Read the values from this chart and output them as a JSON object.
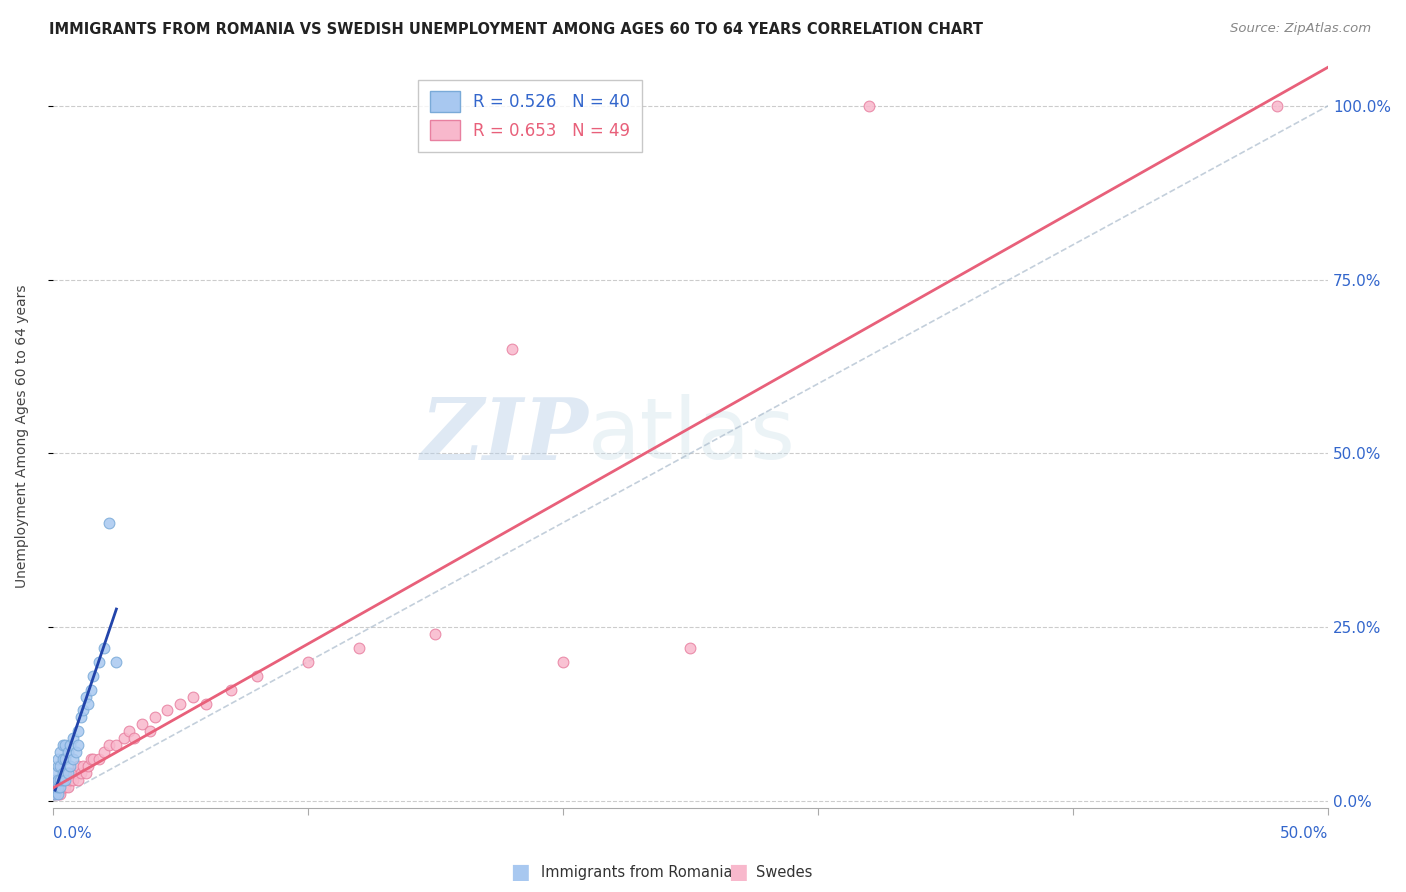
{
  "title": "IMMIGRANTS FROM ROMANIA VS SWEDISH UNEMPLOYMENT AMONG AGES 60 TO 64 YEARS CORRELATION CHART",
  "source": "Source: ZipAtlas.com",
  "ylabel": "Unemployment Among Ages 60 to 64 years",
  "xlim": [
    0.0,
    0.5
  ],
  "ylim": [
    -0.01,
    1.06
  ],
  "yticks": [
    0.0,
    0.25,
    0.5,
    0.75,
    1.0
  ],
  "ytick_labels": [
    "0.0%",
    "25.0%",
    "50.0%",
    "75.0%",
    "100.0%"
  ],
  "background_color": "#ffffff",
  "watermark_zip": "ZIP",
  "watermark_atlas": "atlas",
  "romania_color": "#a8c8f0",
  "romania_edge_color": "#7aaad8",
  "swedes_color": "#f8b8cc",
  "swedes_edge_color": "#e880a0",
  "romania_line_color": "#2244aa",
  "swedes_line_color": "#e8607a",
  "diag_line_color": "#aabbcc",
  "legend_romania_R": "0.526",
  "legend_romania_N": "40",
  "legend_swedes_R": "0.653",
  "legend_swedes_N": "49",
  "romania_x": [
    0.001,
    0.001,
    0.001,
    0.001,
    0.001,
    0.002,
    0.002,
    0.002,
    0.002,
    0.002,
    0.003,
    0.003,
    0.003,
    0.003,
    0.004,
    0.004,
    0.004,
    0.004,
    0.005,
    0.005,
    0.005,
    0.006,
    0.006,
    0.007,
    0.007,
    0.008,
    0.008,
    0.009,
    0.01,
    0.01,
    0.011,
    0.012,
    0.013,
    0.014,
    0.015,
    0.016,
    0.018,
    0.02,
    0.022,
    0.025
  ],
  "romania_y": [
    0.01,
    0.02,
    0.02,
    0.03,
    0.04,
    0.01,
    0.02,
    0.03,
    0.05,
    0.06,
    0.02,
    0.03,
    0.05,
    0.07,
    0.03,
    0.04,
    0.06,
    0.08,
    0.03,
    0.06,
    0.08,
    0.04,
    0.07,
    0.05,
    0.08,
    0.06,
    0.09,
    0.07,
    0.08,
    0.1,
    0.12,
    0.13,
    0.15,
    0.14,
    0.16,
    0.18,
    0.2,
    0.22,
    0.4,
    0.2
  ],
  "swedes_x": [
    0.001,
    0.001,
    0.002,
    0.002,
    0.002,
    0.003,
    0.003,
    0.004,
    0.004,
    0.005,
    0.005,
    0.006,
    0.006,
    0.007,
    0.007,
    0.008,
    0.009,
    0.01,
    0.01,
    0.011,
    0.012,
    0.013,
    0.014,
    0.015,
    0.016,
    0.018,
    0.02,
    0.022,
    0.025,
    0.028,
    0.03,
    0.032,
    0.035,
    0.038,
    0.04,
    0.045,
    0.05,
    0.055,
    0.06,
    0.07,
    0.08,
    0.1,
    0.12,
    0.15,
    0.18,
    0.2,
    0.25,
    0.32,
    0.48
  ],
  "swedes_y": [
    0.01,
    0.02,
    0.01,
    0.02,
    0.03,
    0.01,
    0.02,
    0.02,
    0.03,
    0.02,
    0.03,
    0.02,
    0.04,
    0.03,
    0.04,
    0.03,
    0.04,
    0.03,
    0.05,
    0.04,
    0.05,
    0.04,
    0.05,
    0.06,
    0.06,
    0.06,
    0.07,
    0.08,
    0.08,
    0.09,
    0.1,
    0.09,
    0.11,
    0.1,
    0.12,
    0.13,
    0.14,
    0.15,
    0.14,
    0.16,
    0.18,
    0.2,
    0.22,
    0.24,
    0.65,
    0.2,
    0.22,
    1.0,
    1.0
  ],
  "title_fontsize": 10.5,
  "source_fontsize": 9.5,
  "axis_label_fontsize": 10,
  "tick_fontsize": 11,
  "legend_fontsize": 12,
  "marker_size": 60
}
